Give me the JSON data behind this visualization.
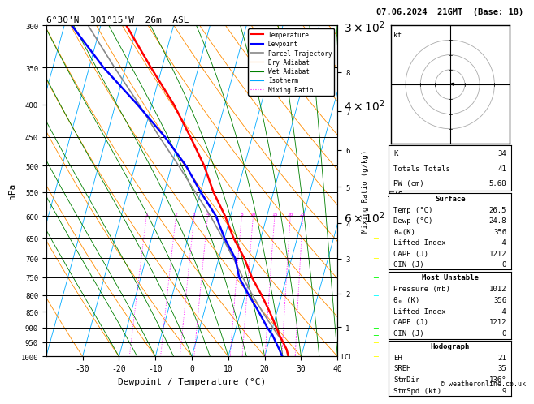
{
  "title_left": "6°30'N  301°15'W  26m  ASL",
  "title_right": "07.06.2024  21GMT  (Base: 18)",
  "xlabel": "Dewpoint / Temperature (°C)",
  "ylabel_left": "hPa",
  "ylabel_right_km": "km\nASL",
  "ylabel_right_mix": "Mixing Ratio (g/kg)",
  "pressure_levels": [
    300,
    350,
    400,
    450,
    500,
    550,
    600,
    650,
    700,
    750,
    800,
    850,
    900,
    950,
    1000
  ],
  "temp_ticks": [
    -30,
    -20,
    -10,
    0,
    10,
    20,
    30,
    40
  ],
  "background_color": "#ffffff",
  "isotherm_color": "#00aaff",
  "dry_adiabat_color": "#ff8c00",
  "wet_adiabat_color": "#008000",
  "mixing_ratio_color": "#ff00ff",
  "temp_line_color": "#ff0000",
  "dewp_line_color": "#0000ff",
  "parcel_line_color": "#888888",
  "temperature_data": {
    "pressure": [
      1000,
      975,
      950,
      925,
      900,
      850,
      800,
      750,
      700,
      650,
      600,
      550,
      500,
      450,
      400,
      350,
      300
    ],
    "temp_C": [
      26.5,
      25.5,
      24.0,
      22.4,
      21.0,
      18.0,
      14.5,
      10.5,
      7.0,
      2.5,
      -1.5,
      -6.5,
      -11.0,
      -17.0,
      -24.0,
      -33.0,
      -43.0
    ]
  },
  "dewpoint_data": {
    "pressure": [
      1000,
      975,
      950,
      925,
      900,
      850,
      800,
      750,
      700,
      650,
      600,
      550,
      500,
      450,
      400,
      350,
      300
    ],
    "dewp_C": [
      24.8,
      23.5,
      22.0,
      20.5,
      18.5,
      15.0,
      11.0,
      7.0,
      4.5,
      0.0,
      -4.0,
      -10.0,
      -16.0,
      -24.0,
      -34.0,
      -46.0,
      -58.0
    ]
  },
  "parcel_data": {
    "pressure": [
      1000,
      975,
      950,
      925,
      900,
      850,
      800,
      750,
      700,
      650,
      600,
      550,
      500,
      450,
      400,
      350,
      300
    ],
    "temp_C": [
      26.5,
      25.5,
      24.0,
      22.0,
      20.0,
      16.0,
      12.0,
      8.0,
      4.0,
      -0.5,
      -5.5,
      -11.5,
      -18.0,
      -25.5,
      -33.5,
      -43.0,
      -53.5
    ]
  },
  "stats": {
    "K": 34,
    "Totals_Totals": 41,
    "PW_cm": 5.68,
    "Surface_Temp": 26.5,
    "Surface_Dewp": 24.8,
    "Surface_ThetaE": 356,
    "Surface_LI": -4,
    "Surface_CAPE": 1212,
    "Surface_CIN": 0,
    "MU_Pressure": 1012,
    "MU_ThetaE": 356,
    "MU_LI": -4,
    "MU_CAPE": 1212,
    "MU_CIN": 0,
    "EH": 21,
    "SREH": 35,
    "StmDir": 136,
    "StmSpd_kt": 9
  },
  "mixing_ratio_lines": [
    1,
    2,
    3,
    4,
    8,
    10,
    15,
    20,
    25
  ],
  "wind_levels_p": [
    1000,
    975,
    950,
    925,
    900,
    850,
    800,
    750,
    700,
    650
  ],
  "wind_colors": [
    "#ffff00",
    "#ffff00",
    "#ffff00",
    "#00ff00",
    "#00ff00",
    "#00ffff",
    "#00ffff",
    "#00ff00",
    "#ffff00",
    "#ffff00"
  ],
  "skew_factor": 25
}
